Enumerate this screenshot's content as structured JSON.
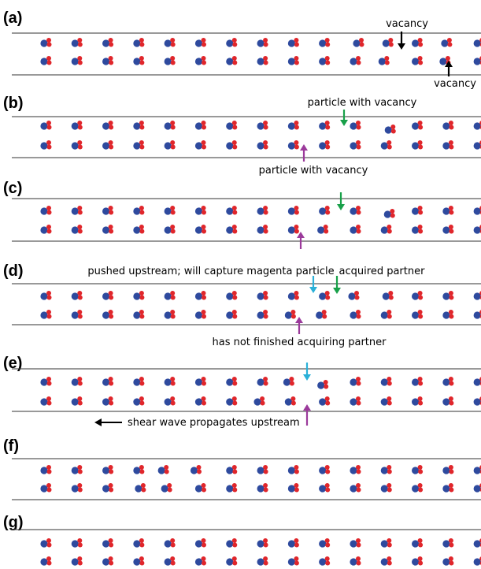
{
  "panels": [
    {
      "label": "(a)",
      "notes": [
        "vacancy",
        "vacancy"
      ]
    },
    {
      "label": "(b)",
      "notes": [
        "particle with vacancy",
        "particle with vacancy"
      ]
    },
    {
      "label": "(c)",
      "notes": []
    },
    {
      "label": "(d)",
      "notes": [
        "pushed upstream; will capture magenta particle",
        "acquired partner",
        "has not finished acquiring partner"
      ]
    },
    {
      "label": "(e)",
      "notes": [
        "shear wave propagates upstream"
      ]
    },
    {
      "label": "(f)",
      "notes": []
    },
    {
      "label": "(g)",
      "notes": []
    }
  ]
}
